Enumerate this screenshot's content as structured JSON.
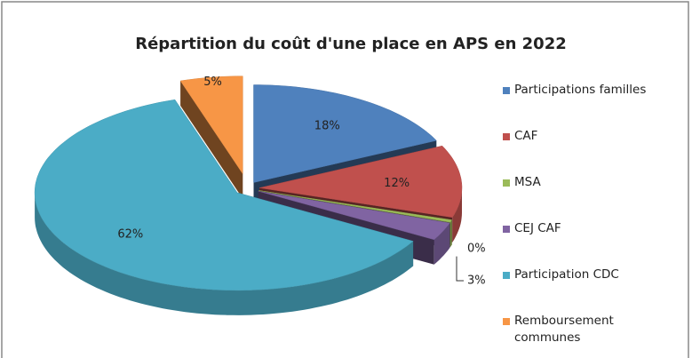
{
  "chart_data": {
    "type": "pie3d",
    "title": "Répartition du coût d'une place en APS en 2022",
    "categories": [
      "Participations familles",
      "CAF",
      "MSA",
      "CEJ CAF",
      "Participation CDC",
      "Remboursement communes"
    ],
    "values": [
      18,
      12,
      0.4,
      3,
      62,
      5
    ],
    "value_labels": [
      "18%",
      "12%",
      "0%",
      "3%",
      "62%",
      "5%"
    ],
    "colors": [
      "#4f81bd",
      "#c0504d",
      "#9bbb59",
      "#8064a2",
      "#4bacc6",
      "#f79646"
    ],
    "legend": "right"
  }
}
